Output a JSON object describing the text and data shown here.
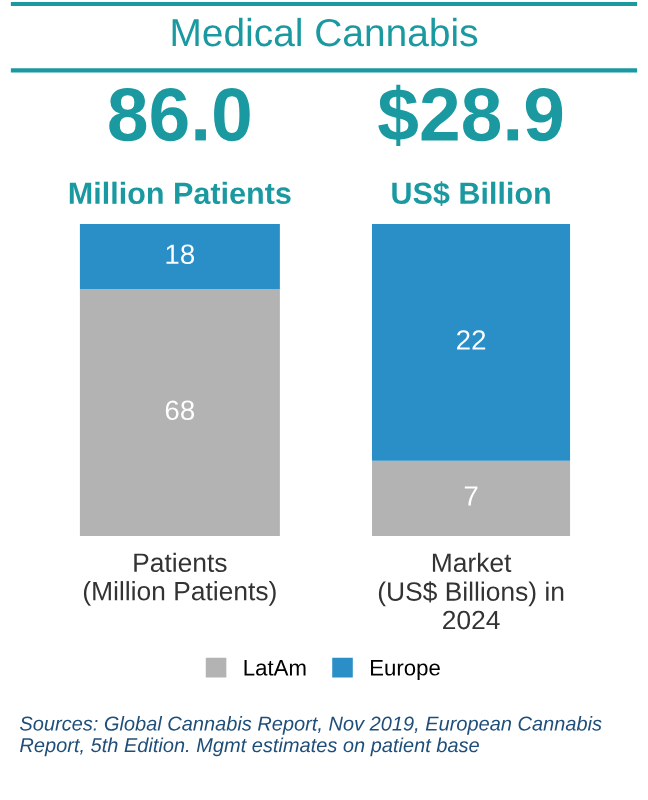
{
  "chart_data": [
    {
      "type": "other",
      "title": "Medical Cannabis",
      "annotations": [
        "Sources: Global Cannabis Report, Nov 2019, European Cannabis Report, 5th Edition. Mgmt estimates on patient base"
      ]
    },
    {
      "type": "bar",
      "title": "86.0",
      "subtitle": "Million Patients",
      "categories": [
        "Patients\n(Million Patients)"
      ],
      "stacked": true,
      "data_labels": true,
      "legend": "bottom",
      "series": [
        {
          "name": "LatAm",
          "color": "#b3b3b3",
          "values": [
            68
          ]
        },
        {
          "name": "Europe",
          "color": "#2a8fc7",
          "values": [
            18
          ]
        }
      ]
    },
    {
      "type": "bar",
      "title": "$28.9",
      "subtitle": "US$ Billion",
      "categories": [
        "Market\n(US$ Billions) in\n2024"
      ],
      "stacked": true,
      "data_labels": true,
      "series": [
        {
          "color": "#b3b3b3",
          "values": [
            7
          ]
        },
        {
          "color": "#2a8fc7",
          "values": [
            22
          ]
        }
      ]
    }
  ]
}
